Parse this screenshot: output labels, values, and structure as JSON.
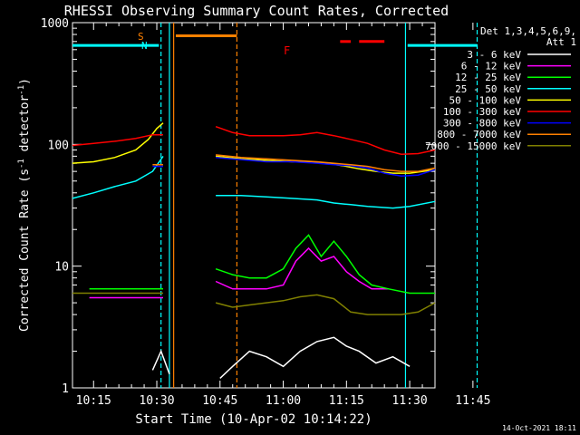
{
  "chart_data": {
    "type": "line",
    "title": "RHESSI Observing Summary Count Rates, Corrected",
    "xlabel": "Start Time (10-Apr-02 10:14:22)",
    "ylabel": "Corrected Count Rate (s",
    "ylabel_sup1": "-1",
    "ylabel_mid": " detector",
    "ylabel_sup2": "-1",
    "ylabel_end": ")",
    "y_scale": "log",
    "ylim": [
      1,
      1000
    ],
    "xlim_minutes": [
      10.0,
      96.0
    ],
    "x_ticks": [
      {
        "label": "10:15",
        "minute": 15
      },
      {
        "label": "10:30",
        "minute": 30
      },
      {
        "label": "10:45",
        "minute": 45
      },
      {
        "label": "11:00",
        "minute": 60
      },
      {
        "label": "11:15",
        "minute": 75
      },
      {
        "label": "11:30",
        "minute": 90
      },
      {
        "label": "11:45",
        "minute": 105
      }
    ],
    "y_ticks": [
      {
        "label": "1",
        "value": 1
      },
      {
        "label": "10",
        "value": 10
      },
      {
        "label": "100",
        "value": 100
      },
      {
        "label": "1000",
        "value": 1000
      }
    ],
    "legend_header": [
      "Det 1,3,4,5,6,9,",
      "Att 1"
    ],
    "footer_date": "14-Oct-2021 18:11",
    "flags": {
      "S": "S",
      "N": "N",
      "F": "F"
    },
    "series": [
      {
        "name": "3 - 6 keV",
        "color": "#ffffff",
        "x": [
          29,
          31,
          33,
          45,
          48,
          52,
          56,
          60,
          64,
          68,
          72,
          75,
          78,
          82,
          86,
          90
        ],
        "y": [
          1.4,
          2.0,
          1.3,
          1.2,
          1.5,
          2.0,
          1.8,
          1.5,
          2.0,
          2.4,
          2.6,
          2.2,
          2.0,
          1.6,
          1.8,
          1.5
        ]
      },
      {
        "name": "6 - 12 keV",
        "color": "#ff00ff",
        "x": [
          14,
          20,
          25,
          30,
          31.5,
          44,
          48,
          52,
          56,
          60,
          63,
          66,
          69,
          72,
          75,
          78,
          81,
          85
        ],
        "y": [
          5.5,
          5.5,
          5.5,
          5.5,
          5.5,
          7.5,
          6.5,
          6.5,
          6.5,
          7.0,
          11,
          14,
          11,
          12,
          9,
          7.5,
          6.5,
          6.5
        ]
      },
      {
        "name": "12 - 25 keV",
        "color": "#00ff00",
        "x": [
          14,
          20,
          25,
          29,
          31.5,
          44,
          48,
          52,
          56,
          60,
          63,
          66,
          69,
          72,
          75,
          78,
          81,
          85,
          90,
          96
        ],
        "y": [
          6.5,
          6.5,
          6.5,
          6.5,
          6.5,
          9.5,
          8.5,
          8.0,
          8.0,
          9.5,
          14,
          18,
          12,
          16,
          12,
          8.5,
          7.0,
          6.5,
          6.0,
          6.0
        ]
      },
      {
        "name": "25 - 50 keV",
        "color": "#00ffff",
        "x": [
          10,
          15,
          20,
          25,
          29,
          31.5,
          44,
          50,
          56,
          62,
          68,
          72,
          76,
          80,
          86,
          90,
          96
        ],
        "y": [
          36,
          40,
          45,
          50,
          60,
          80,
          38,
          38,
          37,
          36,
          35,
          33,
          32,
          31,
          30,
          31,
          34
        ]
      },
      {
        "name": "50 - 100 keV",
        "color": "#ffff00",
        "x": [
          10,
          15,
          20,
          25,
          28,
          30,
          31.5,
          44,
          50,
          56,
          62,
          66,
          70,
          74,
          78,
          82,
          86,
          90,
          96
        ],
        "y": [
          70,
          72,
          78,
          90,
          110,
          135,
          150,
          80,
          76,
          74,
          72,
          72,
          70,
          67,
          63,
          60,
          58,
          58,
          62
        ]
      },
      {
        "name": "100 - 300 keV",
        "color": "#ff0000",
        "x": [
          10,
          15,
          20,
          25,
          29,
          31.5,
          44,
          48,
          52,
          56,
          60,
          64,
          68,
          72,
          76,
          80,
          84,
          88,
          92,
          96
        ],
        "y": [
          98,
          102,
          106,
          112,
          120,
          120,
          140,
          125,
          118,
          118,
          118,
          120,
          125,
          118,
          110,
          102,
          90,
          83,
          84,
          90
        ]
      },
      {
        "name": "300 - 800 keV",
        "color": "#0000ff",
        "x": [
          10,
          20,
          29,
          31.5,
          44,
          50,
          56,
          62,
          68,
          72,
          76,
          80,
          84,
          88,
          92,
          96
        ],
        "y": [
          68,
          68,
          66,
          66,
          78,
          75,
          72,
          72,
          70,
          68,
          67,
          64,
          58,
          55,
          56,
          62
        ]
      },
      {
        "name": "800 - 7000 keV",
        "color": "#ff8000",
        "x": [
          10,
          20,
          29,
          31.5,
          44,
          50,
          56,
          62,
          68,
          72,
          76,
          80,
          84,
          88,
          92,
          96
        ],
        "y": [
          70,
          70,
          68,
          68,
          82,
          78,
          76,
          74,
          72,
          70,
          68,
          66,
          62,
          60,
          60,
          64
        ]
      },
      {
        "name": "7000 - 15000 keV",
        "color": "#808000",
        "x": [
          10,
          15,
          20,
          25,
          29,
          31.5,
          44,
          48,
          52,
          56,
          60,
          64,
          68,
          72,
          76,
          80,
          84,
          88,
          92,
          96
        ],
        "y": [
          6.0,
          6.0,
          6.0,
          6.0,
          6.0,
          6.0,
          5.0,
          4.6,
          4.8,
          5.0,
          5.2,
          5.6,
          5.8,
          5.4,
          4.2,
          4.0,
          4.0,
          4.0,
          4.2,
          5.0
        ]
      }
    ],
    "markers": [
      {
        "kind": "cyan_dashed",
        "minute": 31
      },
      {
        "kind": "cyan_solid",
        "minute": 33
      },
      {
        "kind": "orange_solid",
        "minute": 34
      },
      {
        "kind": "orange_dashed",
        "minute": 49
      },
      {
        "kind": "cyan_solid",
        "minute": 89
      },
      {
        "kind": "cyan_dashed",
        "minute": 106
      }
    ],
    "bars": [
      {
        "color": "#00ffff",
        "start": 10.0,
        "end": 30.5,
        "value": 650
      },
      {
        "color": "#ff8000",
        "start": 34.5,
        "end": 49.0,
        "value": 780
      },
      {
        "color": "#00ffff",
        "start": 89.5,
        "end": 106.0,
        "value": 650
      }
    ],
    "flare_dashes": [
      {
        "start": 73.5,
        "end": 76.0,
        "value": 700
      },
      {
        "start": 78.0,
        "end": 84.0,
        "value": 700
      }
    ]
  }
}
